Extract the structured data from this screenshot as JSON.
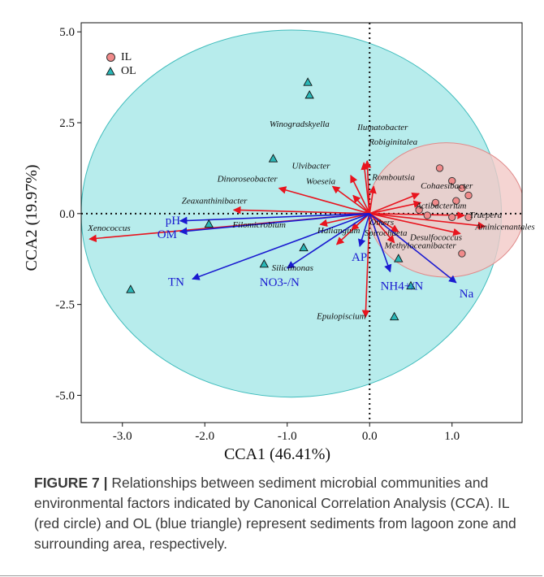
{
  "chart_data": {
    "type": "scatter",
    "xlabel": "CCA1 (46.41%)",
    "ylabel": "CCA2 (19.97%)",
    "xlim": [
      -3.5,
      1.85
    ],
    "ylim": [
      -5.75,
      5.25
    ],
    "xticks": [
      -3.0,
      -2.0,
      -1.0,
      0.0,
      1.0
    ],
    "yticks": [
      -5.0,
      -2.5,
      0.0,
      2.5,
      5.0
    ],
    "x_tick_labels": [
      "-3.0",
      "-2.0",
      "-1.0",
      "0.0",
      "1.0"
    ],
    "y_tick_labels": [
      "-5.0",
      "-2.5",
      "0.0",
      "2.5",
      "5.0"
    ],
    "grid": false,
    "reference_lines": {
      "x": 0,
      "y": 0,
      "style": "dotted"
    },
    "legend_position": "top-left",
    "series": [
      {
        "name": "IL",
        "marker": "circle",
        "color": "#f08a8a",
        "points": [
          [
            0.85,
            1.25
          ],
          [
            1.0,
            0.9
          ],
          [
            1.12,
            0.7
          ],
          [
            1.2,
            0.5
          ],
          [
            1.05,
            0.35
          ],
          [
            0.8,
            0.3
          ],
          [
            0.6,
            0.1
          ],
          [
            0.7,
            -0.05
          ],
          [
            1.0,
            -0.1
          ],
          [
            1.2,
            -0.1
          ],
          [
            1.12,
            -1.1
          ]
        ]
      },
      {
        "name": "OL",
        "marker": "triangle",
        "color": "#2ab7b7",
        "points": [
          [
            -0.75,
            3.6
          ],
          [
            -0.73,
            3.25
          ],
          [
            -1.17,
            1.5
          ],
          [
            -1.95,
            -0.3
          ],
          [
            -0.8,
            -0.95
          ],
          [
            -1.28,
            -1.4
          ],
          [
            -2.9,
            -2.1
          ],
          [
            0.35,
            -1.25
          ],
          [
            0.5,
            -2.0
          ],
          [
            0.3,
            -2.85
          ]
        ]
      }
    ],
    "ellipses": [
      {
        "group": "OL",
        "fill": "#b7ecec",
        "stroke": "#3fbcbc",
        "center": [
          -0.95,
          0.0
        ],
        "rx": 2.55,
        "ry": 5.05
      },
      {
        "group": "IL",
        "fill": "#f3c9c7",
        "stroke": "#e08a8a",
        "center": [
          0.93,
          0.1
        ],
        "rx": 0.95,
        "ry": 1.85
      }
    ],
    "species_arrows": [
      {
        "label": "Xenococcus",
        "x": -3.4,
        "y": -0.7
      },
      {
        "label": "Zeaxanthinibacter",
        "x": -1.65,
        "y": 0.1
      },
      {
        "label": "Dinoroseobacter",
        "x": -1.1,
        "y": 0.7
      },
      {
        "label": "Winogradskyella",
        "x": -0.23,
        "y": 1.05
      },
      {
        "label": "Ulvibacter",
        "x": -0.45,
        "y": 0.75
      },
      {
        "label": "Ilumatobacter",
        "x": -0.07,
        "y": 1.4
      },
      {
        "label": "Robiginitalea",
        "x": -0.03,
        "y": 1.45
      },
      {
        "label": "Woeseia",
        "x": -0.2,
        "y": 0.5
      },
      {
        "label": "Romboutsia",
        "x": 0.05,
        "y": 0.75
      },
      {
        "label": "Cohaesibacter",
        "x": 0.6,
        "y": 0.55
      },
      {
        "label": "Actibacterium",
        "x": 0.62,
        "y": 0.3
      },
      {
        "label": "Others",
        "x": 0.02,
        "y": -0.05
      },
      {
        "label": "Truepera",
        "x": 1.15,
        "y": -0.05
      },
      {
        "label": "Aminicenantales",
        "x": 1.4,
        "y": -0.35
      },
      {
        "label": "Desulfococcus",
        "x": 1.1,
        "y": -0.55
      },
      {
        "label": "Spirochaeta",
        "x": 0.35,
        "y": -0.5
      },
      {
        "label": "Methyloceanibacter",
        "x": 0.3,
        "y": -0.8
      },
      {
        "label": "Filomicrobium",
        "x": -0.6,
        "y": -0.3
      },
      {
        "label": "Haliangium",
        "x": -0.22,
        "y": -0.45
      },
      {
        "label": "Silicimonas",
        "x": -0.4,
        "y": -0.85
      },
      {
        "label": "Epulopiscium",
        "x": -0.05,
        "y": -2.85
      }
    ],
    "env_arrows": [
      {
        "label": "pH",
        "x": -2.3,
        "y": -0.2
      },
      {
        "label": "OM",
        "x": -2.3,
        "y": -0.5
      },
      {
        "label": "TN",
        "x": -2.15,
        "y": -1.8
      },
      {
        "label": "NO3-/N",
        "x": -1.0,
        "y": -1.5
      },
      {
        "label": "AP",
        "x": -0.12,
        "y": -0.9
      },
      {
        "label": "NH4+/N",
        "x": 0.25,
        "y": -1.6
      },
      {
        "label": "Na",
        "x": 1.05,
        "y": -1.9
      }
    ]
  },
  "legend": [
    {
      "label": "IL"
    },
    {
      "label": "OL"
    }
  ],
  "caption": {
    "figure_label": "FIGURE 7 |",
    "text": " Relationships between sediment microbial communities and environmental factors indicated by Canonical Correlation Analysis (CCA). IL (red circle) and OL (blue triangle) represent sediments from lagoon zone and surrounding area, respectively."
  },
  "colors": {
    "species_arrow": "#e8141e",
    "env_arrow": "#1a1ad0",
    "il_fill": "#f08a8a",
    "ol_fill": "#2ab7b7"
  }
}
